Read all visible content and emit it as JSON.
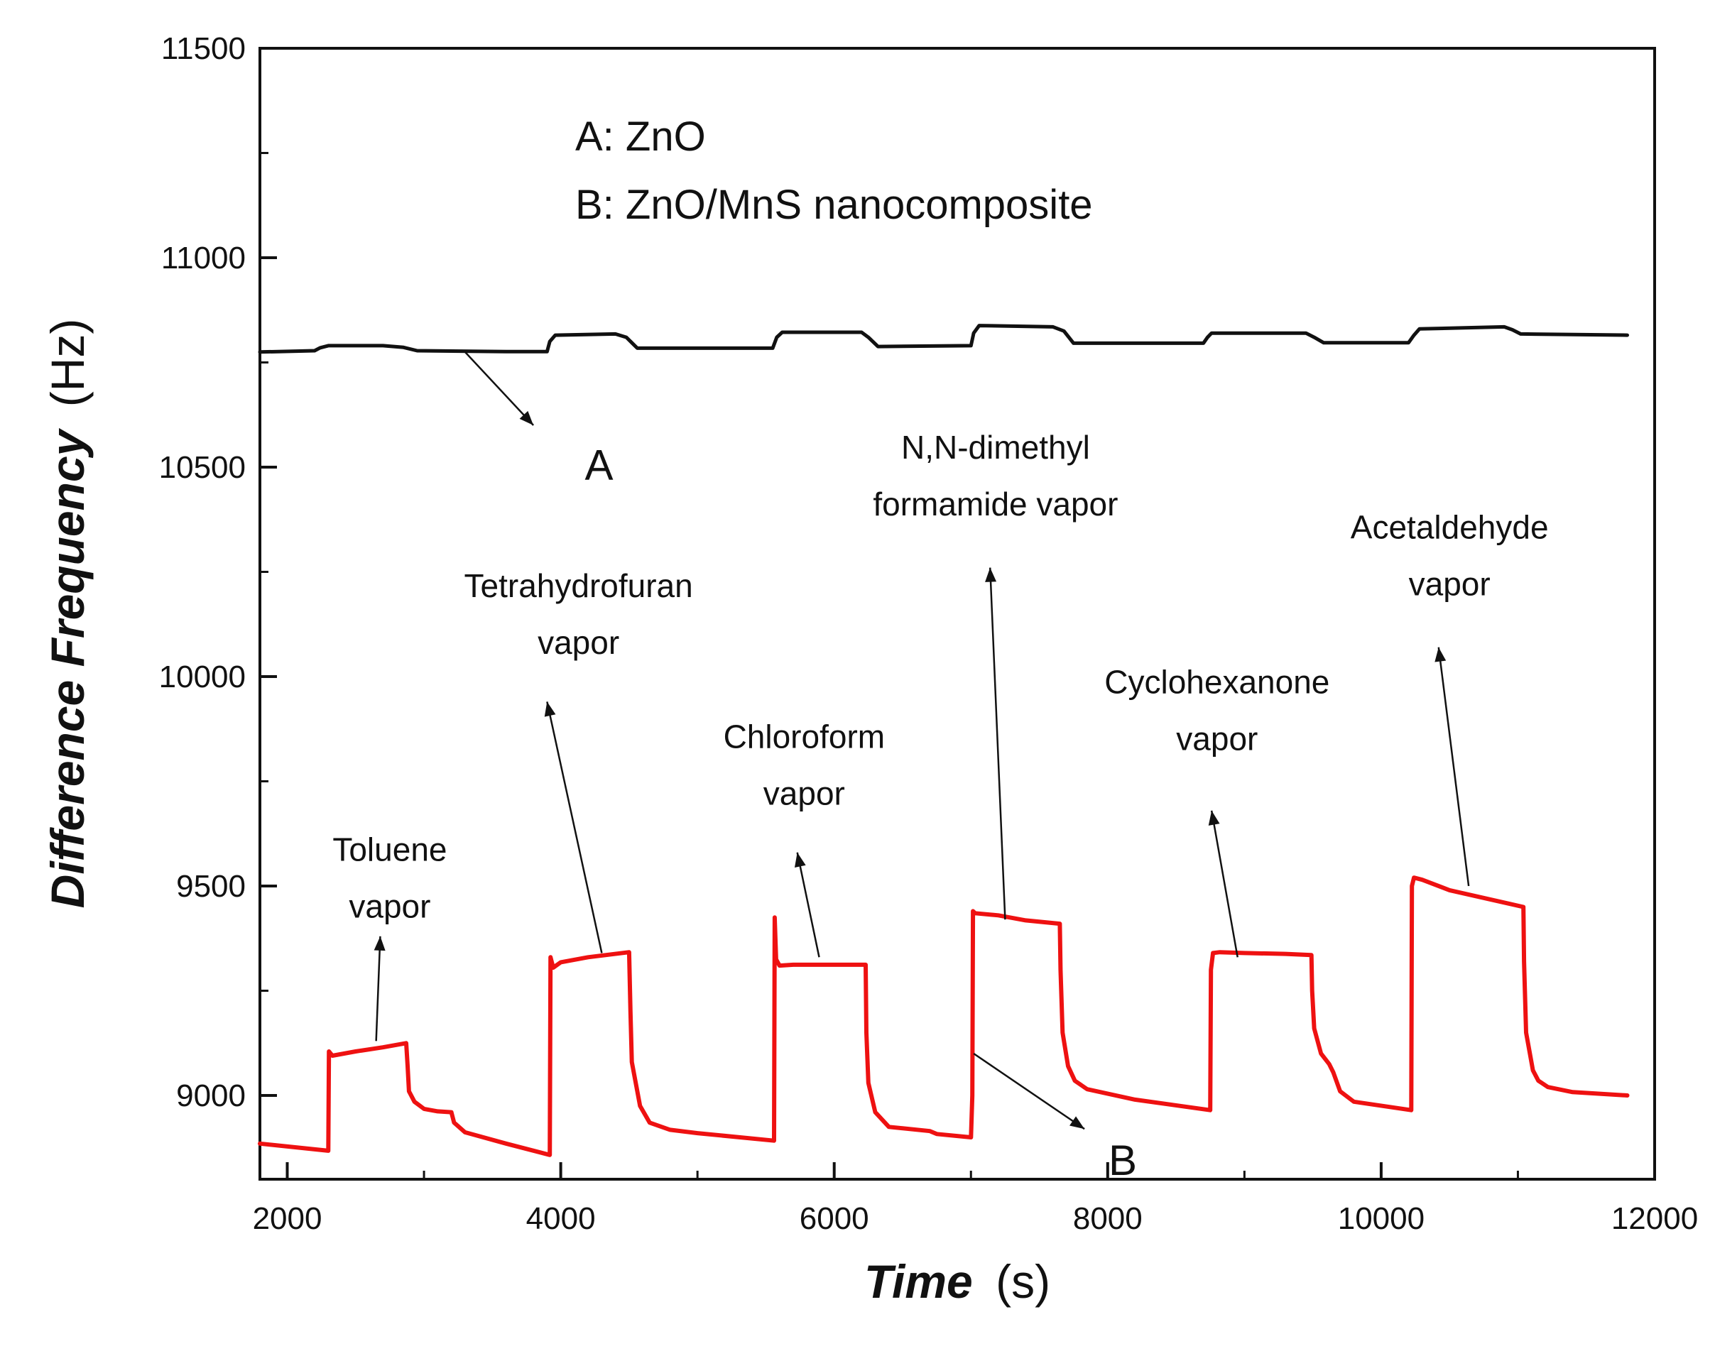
{
  "chart_data": {
    "type": "line",
    "title": "",
    "xlabel": "Time",
    "xlabel_unit": "(s)",
    "ylabel": "Difference Frequency",
    "ylabel_unit": "(Hz)",
    "xlim": [
      1800,
      12000
    ],
    "ylim": [
      8800,
      11500
    ],
    "xticks": [
      2000,
      4000,
      6000,
      8000,
      10000,
      12000
    ],
    "yticks": [
      9000,
      9500,
      10000,
      10500,
      11000,
      11500
    ],
    "grid": false,
    "legend": {
      "position": "top-left",
      "entries": [
        "A: ZnO",
        "B: ZnO/MnS nanocomposite"
      ]
    },
    "series": [
      {
        "name": "A",
        "color": "#111111",
        "x": [
          1800,
          2200,
          2240,
          2300,
          2700,
          2850,
          2950,
          3600,
          3900,
          3920,
          3960,
          4400,
          4480,
          4560,
          5550,
          5580,
          5620,
          6200,
          6250,
          6320,
          7000,
          7020,
          7060,
          7600,
          7680,
          7750,
          8700,
          8730,
          8760,
          9450,
          9510,
          9580,
          10200,
          10240,
          10280,
          10900,
          10960,
          11020,
          11800
        ],
        "values": [
          10775,
          10778,
          10785,
          10790,
          10790,
          10786,
          10778,
          10776,
          10776,
          10800,
          10815,
          10818,
          10810,
          10784,
          10784,
          10810,
          10822,
          10822,
          10810,
          10788,
          10790,
          10820,
          10838,
          10835,
          10825,
          10796,
          10796,
          10810,
          10820,
          10820,
          10810,
          10797,
          10797,
          10815,
          10830,
          10835,
          10828,
          10818,
          10815
        ]
      },
      {
        "name": "B",
        "color": "#ee1111",
        "x": [
          1800,
          2300,
          2305,
          2330,
          2500,
          2700,
          2870,
          2880,
          2890,
          2930,
          3000,
          3100,
          3200,
          3220,
          3300,
          3600,
          3920,
          3925,
          3945,
          4000,
          4200,
          4500,
          4510,
          4520,
          4580,
          4650,
          4800,
          5000,
          5560,
          5565,
          5575,
          5600,
          5700,
          6000,
          6230,
          6235,
          6250,
          6300,
          6400,
          6700,
          6750,
          7000,
          7010,
          7015,
          7030,
          7200,
          7400,
          7650,
          7655,
          7670,
          7710,
          7760,
          7850,
          8200,
          8750,
          8755,
          8770,
          8820,
          9000,
          9300,
          9490,
          9495,
          9510,
          9560,
          9620,
          9650,
          9700,
          9800,
          10220,
          10225,
          10240,
          10300,
          10500,
          11040,
          11045,
          11060,
          11110,
          11150,
          11220,
          11400,
          11800
        ],
        "values": [
          8885,
          8868,
          9105,
          9095,
          9105,
          9115,
          9125,
          9070,
          9010,
          8985,
          8968,
          8962,
          8960,
          8935,
          8912,
          8885,
          8858,
          9330,
          9305,
          9318,
          9330,
          9342,
          9200,
          9080,
          8975,
          8935,
          8918,
          8910,
          8892,
          9425,
          9325,
          9310,
          9312,
          9312,
          9312,
          9150,
          9030,
          8960,
          8925,
          8915,
          8908,
          8900,
          9000,
          9440,
          9435,
          9430,
          9418,
          9410,
          9300,
          9150,
          9070,
          9035,
          9015,
          8990,
          8965,
          9300,
          9340,
          9342,
          9340,
          9338,
          9335,
          9250,
          9160,
          9100,
          9075,
          9055,
          9010,
          8985,
          8965,
          9500,
          9520,
          9515,
          9490,
          9450,
          9320,
          9150,
          9060,
          9035,
          9020,
          9008,
          9000
        ]
      }
    ],
    "annotations": [
      {
        "lines": [
          "Toluene",
          "vapor"
        ],
        "text_x": 2750,
        "text_y": 9560,
        "arrow_from": [
          2650,
          9130
        ],
        "arrow_to": [
          2680,
          9380
        ]
      },
      {
        "lines": [
          "Tetrahydrofuran",
          "vapor"
        ],
        "text_x": 4130,
        "text_y": 10190,
        "arrow_from": [
          4300,
          9340
        ],
        "arrow_to": [
          3900,
          9940
        ]
      },
      {
        "lines": [
          "Chloroform",
          "vapor"
        ],
        "text_x": 5780,
        "text_y": 9830,
        "arrow_from": [
          5890,
          9330
        ],
        "arrow_to": [
          5730,
          9580
        ]
      },
      {
        "lines": [
          "N,N-dimethyl",
          "formamide vapor"
        ],
        "text_x": 7180,
        "text_y": 10520,
        "arrow_from": [
          7250,
          9420
        ],
        "arrow_to": [
          7140,
          10260
        ]
      },
      {
        "lines": [
          "Cyclohexanone",
          "vapor"
        ],
        "text_x": 8800,
        "text_y": 9960,
        "arrow_from": [
          8950,
          9330
        ],
        "arrow_to": [
          8760,
          9680
        ]
      },
      {
        "lines": [
          "Acetaldehyde",
          "vapor"
        ],
        "text_x": 10500,
        "text_y": 10330,
        "arrow_from": [
          10640,
          9500
        ],
        "arrow_to": [
          10420,
          10070
        ]
      }
    ],
    "series_labels": [
      {
        "text": "A",
        "text_x": 4280,
        "text_y": 10470,
        "arrow_from": [
          3300,
          10775
        ],
        "arrow_to": [
          3800,
          10600
        ]
      },
      {
        "text": "B",
        "text_x": 8110,
        "text_y": 8810,
        "arrow_from": [
          7020,
          9100
        ],
        "arrow_to": [
          7830,
          8920
        ]
      }
    ]
  }
}
